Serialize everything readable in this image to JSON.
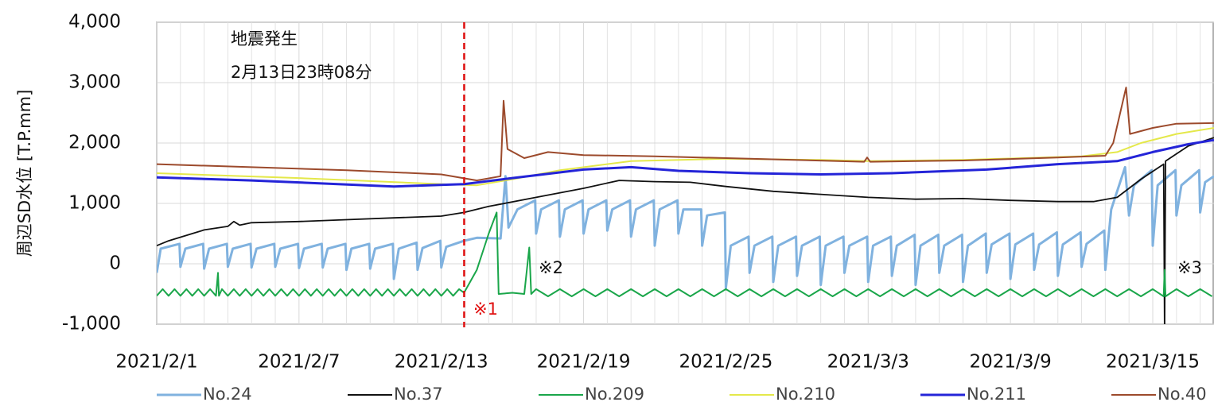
{
  "chart_data": {
    "type": "line",
    "ylabel": "周辺SD水位 [T.P.mm]",
    "ylim": [
      -1000,
      4000
    ],
    "yticks": [
      {
        "value": -1000,
        "label": "-1,000"
      },
      0,
      {
        "value": 1000,
        "label": "1,000"
      },
      {
        "value": 2000,
        "label": "2,000"
      },
      {
        "value": 3000,
        "label": "3,000"
      },
      {
        "value": 4000,
        "label": "4,000"
      }
    ],
    "xlim": [
      "2021-02-01T00:00",
      "2021-03-17T14:00"
    ],
    "xticks": [
      {
        "value": "2021-02-01",
        "label": "2021/2/1"
      },
      {
        "value": "2021-02-07",
        "label": "2021/2/7"
      },
      {
        "value": "2021-02-13",
        "label": "2021/2/13"
      },
      {
        "value": "2021-02-19",
        "label": "2021/2/19"
      },
      {
        "value": "2021-02-25",
        "label": "2021/2/25"
      },
      {
        "value": "2021-03-03",
        "label": "2021/3/3"
      },
      {
        "value": "2021-03-09",
        "label": "2021/3/9"
      },
      {
        "value": "2021-03-15",
        "label": "2021/3/15"
      }
    ],
    "xminor_ticks": [
      "2021-02-02",
      "2021-02-03",
      "2021-02-04",
      "2021-02-05",
      "2021-02-06",
      "2021-02-08",
      "2021-02-09",
      "2021-02-10",
      "2021-02-11",
      "2021-02-12",
      "2021-02-14",
      "2021-02-15",
      "2021-02-16",
      "2021-02-17",
      "2021-02-18",
      "2021-02-20",
      "2021-02-21",
      "2021-02-22",
      "2021-02-23",
      "2021-02-24",
      "2021-02-26",
      "2021-02-27",
      "2021-02-28",
      "2021-03-01",
      "2021-03-02",
      "2021-03-04",
      "2021-03-05",
      "2021-03-06",
      "2021-03-07",
      "2021-03-08",
      "2021-03-10",
      "2021-03-11",
      "2021-03-12",
      "2021-03-13",
      "2021-03-14",
      "2021-03-16",
      "2021-03-17"
    ],
    "grid": true,
    "event": {
      "x": "2021-02-13T23:08",
      "color": "#e01010",
      "labels": [
        "地震発生",
        "2月13日23時08分"
      ]
    },
    "notes": [
      "※1",
      "※2",
      "※3"
    ],
    "series": [
      {
        "name": "No.24",
        "color": "#80b2df",
        "width": 3,
        "x": [
          "2021-02-01T00:00",
          "2021-02-01T04:00",
          "2021-02-01T23:00",
          "2021-02-02T00:00",
          "2021-02-02T05:00",
          "2021-02-02T23:00",
          "2021-02-03T00:00",
          "2021-02-03T05:00",
          "2021-02-03T23:00",
          "2021-02-04T00:00",
          "2021-02-04T05:00",
          "2021-02-04T23:00",
          "2021-02-05T00:00",
          "2021-02-05T05:00",
          "2021-02-05T23:00",
          "2021-02-06T00:00",
          "2021-02-06T05:00",
          "2021-02-06T23:00",
          "2021-02-07T00:00",
          "2021-02-07T05:00",
          "2021-02-07T23:00",
          "2021-02-08T00:00",
          "2021-02-08T05:00",
          "2021-02-08T23:00",
          "2021-02-09T00:00",
          "2021-02-09T05:00",
          "2021-02-09T23:00",
          "2021-02-10T00:00",
          "2021-02-10T05:00",
          "2021-02-10T23:00",
          "2021-02-11T00:00",
          "2021-02-11T05:00",
          "2021-02-11T23:00",
          "2021-02-12T00:00",
          "2021-02-12T05:00",
          "2021-02-12T23:00",
          "2021-02-13T00:00",
          "2021-02-13T05:00",
          "2021-02-13T23:00",
          "2021-02-14T12:00",
          "2021-02-15T12:00",
          "2021-02-15T17:00",
          "2021-02-15T20:00",
          "2021-02-16T05:00",
          "2021-02-16T23:00",
          "2021-02-17T00:00",
          "2021-02-17T05:00",
          "2021-02-17T23:00",
          "2021-02-18T00:00",
          "2021-02-18T05:00",
          "2021-02-18T23:00",
          "2021-02-19T00:00",
          "2021-02-19T05:00",
          "2021-02-19T23:00",
          "2021-02-20T00:00",
          "2021-02-20T05:00",
          "2021-02-20T23:00",
          "2021-02-21T00:00",
          "2021-02-21T05:00",
          "2021-02-21T23:00",
          "2021-02-22T00:00",
          "2021-02-22T05:00",
          "2021-02-22T23:00",
          "2021-02-23T00:00",
          "2021-02-23T05:00",
          "2021-02-23T23:00",
          "2021-02-24T00:00",
          "2021-02-24T05:00",
          "2021-02-24T23:00",
          "2021-02-25T00:00",
          "2021-02-25T05:00",
          "2021-02-25T23:00",
          "2021-02-26T00:00",
          "2021-02-26T05:00",
          "2021-02-26T23:00",
          "2021-02-27T00:00",
          "2021-02-27T05:00",
          "2021-02-27T23:00",
          "2021-02-28T00:00",
          "2021-02-28T05:00",
          "2021-02-28T23:00",
          "2021-03-01T00:00",
          "2021-03-01T05:00",
          "2021-03-01T23:00",
          "2021-03-02T00:00",
          "2021-03-02T05:00",
          "2021-03-02T23:00",
          "2021-03-03T00:00",
          "2021-03-03T05:00",
          "2021-03-03T23:00",
          "2021-03-04T00:00",
          "2021-03-04T05:00",
          "2021-03-04T23:00",
          "2021-03-05T00:00",
          "2021-03-05T05:00",
          "2021-03-05T23:00",
          "2021-03-06T00:00",
          "2021-03-06T05:00",
          "2021-03-06T23:00",
          "2021-03-07T00:00",
          "2021-03-07T05:00",
          "2021-03-07T23:00",
          "2021-03-08T00:00",
          "2021-03-08T05:00",
          "2021-03-08T23:00",
          "2021-03-09T00:00",
          "2021-03-09T05:00",
          "2021-03-09T23:00",
          "2021-03-10T00:00",
          "2021-03-10T05:00",
          "2021-03-10T23:00",
          "2021-03-11T00:00",
          "2021-03-11T05:00",
          "2021-03-11T23:00",
          "2021-03-12T00:00",
          "2021-03-12T05:00",
          "2021-03-12T23:00",
          "2021-03-13T00:00",
          "2021-03-13T06:00",
          "2021-03-13T20:00",
          "2021-03-14T00:00",
          "2021-03-14T05:00",
          "2021-03-14T23:00",
          "2021-03-15T00:00",
          "2021-03-15T05:00",
          "2021-03-15T23:00",
          "2021-03-16T00:00",
          "2021-03-16T05:00",
          "2021-03-16T23:00",
          "2021-03-17T00:00",
          "2021-03-17T05:00",
          "2021-03-17T14:00"
        ],
        "values": [
          -150,
          250,
          330,
          -50,
          250,
          330,
          -80,
          250,
          330,
          -50,
          250,
          330,
          -60,
          250,
          330,
          -50,
          250,
          330,
          -70,
          250,
          330,
          -60,
          250,
          330,
          -100,
          250,
          330,
          -80,
          250,
          330,
          -250,
          250,
          350,
          -100,
          260,
          380,
          -60,
          280,
          380,
          430,
          420,
          1450,
          600,
          900,
          1050,
          500,
          900,
          1050,
          450,
          900,
          1050,
          500,
          900,
          1050,
          550,
          900,
          1050,
          450,
          900,
          1050,
          300,
          900,
          1050,
          500,
          900,
          900,
          300,
          800,
          850,
          -400,
          300,
          450,
          -150,
          300,
          450,
          -300,
          300,
          450,
          -200,
          300,
          450,
          -350,
          300,
          450,
          -150,
          300,
          450,
          -300,
          300,
          450,
          -200,
          300,
          480,
          -350,
          300,
          480,
          -150,
          300,
          480,
          -300,
          300,
          500,
          -150,
          320,
          500,
          -250,
          320,
          500,
          -100,
          320,
          520,
          -200,
          320,
          520,
          -50,
          330,
          550,
          -100,
          900,
          1600,
          800,
          1300,
          1550,
          300,
          1300,
          1550,
          800,
          1300,
          1550,
          850,
          1350,
          1450
        ]
      },
      {
        "name": "No.37",
        "color": "#111111",
        "width": 1.8,
        "x": [
          "2021-02-01T00:00",
          "2021-02-01T12:00",
          "2021-02-02T12:00",
          "2021-02-03T00:00",
          "2021-02-04T00:00",
          "2021-02-04T06:00",
          "2021-02-04T12:00",
          "2021-02-05T00:00",
          "2021-02-07T00:00",
          "2021-02-09T00:00",
          "2021-02-11T00:00",
          "2021-02-13T00:00",
          "2021-02-13T23:00",
          "2021-02-15T00:00",
          "2021-02-17T00:00",
          "2021-02-19T00:00",
          "2021-02-20T12:00",
          "2021-02-22T00:00",
          "2021-02-23T12:00",
          "2021-02-25T00:00",
          "2021-02-27T00:00",
          "2021-03-01T00:00",
          "2021-03-03T00:00",
          "2021-03-05T00:00",
          "2021-03-07T00:00",
          "2021-03-09T00:00",
          "2021-03-11T00:00",
          "2021-03-12T12:00",
          "2021-03-13T12:00",
          "2021-03-14T12:00",
          "2021-03-15T11:00",
          "2021-03-15T12:00",
          "2021-03-15T13:00",
          "2021-03-16T12:00",
          "2021-03-17T14:00"
        ],
        "values": [
          300,
          380,
          500,
          560,
          620,
          700,
          640,
          680,
          700,
          730,
          760,
          790,
          850,
          950,
          1100,
          1250,
          1380,
          1360,
          1350,
          1280,
          1200,
          1150,
          1100,
          1070,
          1080,
          1050,
          1030,
          1030,
          1100,
          1400,
          1650,
          -1100,
          1700,
          1950,
          2090
        ]
      },
      {
        "name": "No.209",
        "color": "#1aa64a",
        "width": 2,
        "x": [
          "2021-02-01T00:00",
          "2021-02-01T06:00",
          "2021-02-01T12:00",
          "2021-02-01T18:00",
          "2021-02-02T00:00",
          "2021-02-02T06:00",
          "2021-02-02T12:00",
          "2021-02-02T18:00",
          "2021-02-03T00:00",
          "2021-02-03T06:00",
          "2021-02-03T12:00",
          "2021-02-03T14:00",
          "2021-02-03T15:00",
          "2021-02-03T18:00",
          "2021-02-04T00:00",
          "2021-02-04T06:00",
          "2021-02-04T12:00",
          "2021-02-04T18:00",
          "2021-02-05T00:00",
          "2021-02-05T06:00",
          "2021-02-05T12:00",
          "2021-02-05T18:00",
          "2021-02-06T00:00",
          "2021-02-06T06:00",
          "2021-02-06T12:00",
          "2021-02-06T18:00",
          "2021-02-07T00:00",
          "2021-02-07T06:00",
          "2021-02-07T12:00",
          "2021-02-07T18:00",
          "2021-02-08T00:00",
          "2021-02-08T06:00",
          "2021-02-08T12:00",
          "2021-02-08T18:00",
          "2021-02-09T00:00",
          "2021-02-09T06:00",
          "2021-02-09T12:00",
          "2021-02-09T18:00",
          "2021-02-10T00:00",
          "2021-02-10T06:00",
          "2021-02-10T12:00",
          "2021-02-10T18:00",
          "2021-02-11T00:00",
          "2021-02-11T06:00",
          "2021-02-11T12:00",
          "2021-02-11T18:00",
          "2021-02-12T00:00",
          "2021-02-12T06:00",
          "2021-02-12T12:00",
          "2021-02-12T18:00",
          "2021-02-13T00:00",
          "2021-02-13T06:00",
          "2021-02-13T12:00",
          "2021-02-13T18:00",
          "2021-02-13T23:00",
          "2021-02-14T12:00",
          "2021-02-15T00:00",
          "2021-02-15T08:00",
          "2021-02-15T10:00",
          "2021-02-16T00:00",
          "2021-02-16T12:00",
          "2021-02-16T17:00",
          "2021-02-16T19:00",
          "2021-02-17T00:00",
          "2021-02-17T12:00",
          "2021-02-18T00:00",
          "2021-02-18T12:00",
          "2021-02-19T00:00",
          "2021-02-19T12:00",
          "2021-02-20T00:00",
          "2021-02-20T12:00",
          "2021-02-21T00:00",
          "2021-02-21T12:00",
          "2021-02-22T00:00",
          "2021-02-22T12:00",
          "2021-02-23T00:00",
          "2021-02-23T12:00",
          "2021-02-24T00:00",
          "2021-02-24T12:00",
          "2021-02-25T00:00",
          "2021-02-25T12:00",
          "2021-02-26T00:00",
          "2021-02-26T12:00",
          "2021-02-27T00:00",
          "2021-02-27T12:00",
          "2021-02-28T00:00",
          "2021-02-28T12:00",
          "2021-03-01T00:00",
          "2021-03-01T12:00",
          "2021-03-02T00:00",
          "2021-03-02T12:00",
          "2021-03-03T00:00",
          "2021-03-03T12:00",
          "2021-03-04T00:00",
          "2021-03-04T12:00",
          "2021-03-05T00:00",
          "2021-03-05T12:00",
          "2021-03-06T00:00",
          "2021-03-06T12:00",
          "2021-03-07T00:00",
          "2021-03-07T12:00",
          "2021-03-08T00:00",
          "2021-03-08T12:00",
          "2021-03-09T00:00",
          "2021-03-09T12:00",
          "2021-03-10T00:00",
          "2021-03-10T12:00",
          "2021-03-11T00:00",
          "2021-03-11T12:00",
          "2021-03-12T00:00",
          "2021-03-12T12:00",
          "2021-03-13T00:00",
          "2021-03-13T12:00",
          "2021-03-14T00:00",
          "2021-03-14T12:00",
          "2021-03-15T00:00",
          "2021-03-15T11:00",
          "2021-03-15T12:00",
          "2021-03-15T13:00",
          "2021-03-16T00:00",
          "2021-03-16T12:00",
          "2021-03-17T00:00",
          "2021-03-17T12:00"
        ],
        "values": [
          -530,
          -420,
          -530,
          -420,
          -530,
          -420,
          -530,
          -420,
          -530,
          -420,
          -530,
          -150,
          -530,
          -420,
          -530,
          -420,
          -530,
          -420,
          -530,
          -420,
          -530,
          -420,
          -530,
          -420,
          -530,
          -420,
          -530,
          -420,
          -530,
          -420,
          -530,
          -420,
          -530,
          -420,
          -530,
          -420,
          -530,
          -420,
          -530,
          -420,
          -530,
          -420,
          -530,
          -420,
          -530,
          -420,
          -530,
          -420,
          -530,
          -420,
          -530,
          -420,
          -530,
          -420,
          -480,
          -100,
          500,
          850,
          -500,
          -480,
          -500,
          270,
          -500,
          -420,
          -540,
          -420,
          -540,
          -420,
          -540,
          -420,
          -540,
          -420,
          -540,
          -420,
          -540,
          -420,
          -540,
          -420,
          -540,
          -420,
          -540,
          -420,
          -540,
          -420,
          -540,
          -420,
          -540,
          -420,
          -540,
          -420,
          -540,
          -420,
          -540,
          -420,
          -540,
          -420,
          -540,
          -420,
          -540,
          -420,
          -540,
          -420,
          -540,
          -420,
          -540,
          -420,
          -540,
          -420,
          -540,
          -420,
          -540,
          -420,
          -540,
          -420,
          -540,
          -420,
          -540,
          -100,
          -540,
          -420,
          -540,
          -420,
          -540
        ]
      },
      {
        "name": "No.210",
        "color": "#e4e84a",
        "width": 2,
        "x": [
          "2021-02-01T00:00",
          "2021-02-07T00:00",
          "2021-02-13T00:00",
          "2021-02-14T12:00",
          "2021-02-16T00:00",
          "2021-02-18T00:00",
          "2021-02-21T00:00",
          "2021-02-25T00:00",
          "2021-03-01T00:00",
          "2021-03-03T00:00",
          "2021-03-07T00:00",
          "2021-03-12T00:00",
          "2021-03-13T12:00",
          "2021-03-14T12:00",
          "2021-03-16T00:00",
          "2021-03-17T14:00"
        ],
        "values": [
          1500,
          1420,
          1320,
          1300,
          1400,
          1550,
          1700,
          1740,
          1720,
          1700,
          1720,
          1780,
          1850,
          2000,
          2150,
          2250
        ]
      },
      {
        "name": "No.211",
        "color": "#2424d8",
        "width": 3,
        "x": [
          "2021-02-01T00:00",
          "2021-02-05T00:00",
          "2021-02-11T00:00",
          "2021-02-13T23:00",
          "2021-02-16T00:00",
          "2021-02-19T00:00",
          "2021-02-21T00:00",
          "2021-02-23T00:00",
          "2021-02-26T00:00",
          "2021-03-01T00:00",
          "2021-03-04T00:00",
          "2021-03-08T00:00",
          "2021-03-11T00:00",
          "2021-03-13T12:00",
          "2021-03-15T00:00",
          "2021-03-16T12:00",
          "2021-03-17T14:00"
        ],
        "values": [
          1430,
          1380,
          1280,
          1320,
          1420,
          1560,
          1600,
          1540,
          1500,
          1480,
          1500,
          1560,
          1650,
          1700,
          1850,
          1980,
          2050
        ]
      },
      {
        "name": "No.40",
        "color": "#9c4a2c",
        "width": 2,
        "x": [
          "2021-02-01T00:00",
          "2021-02-05T00:00",
          "2021-02-09T00:00",
          "2021-02-13T00:00",
          "2021-02-14T12:00",
          "2021-02-15T12:00",
          "2021-02-15T15:00",
          "2021-02-15T19:00",
          "2021-02-16T12:00",
          "2021-02-17T12:00",
          "2021-02-19T00:00",
          "2021-02-22T00:00",
          "2021-02-26T00:00",
          "2021-03-02T20:00",
          "2021-03-02T23:00",
          "2021-03-03T02:00",
          "2021-03-07T00:00",
          "2021-03-11T00:00",
          "2021-03-13T00:00",
          "2021-03-13T08:00",
          "2021-03-13T21:00",
          "2021-03-14T01:00",
          "2021-03-15T00:00",
          "2021-03-16T00:00",
          "2021-03-17T14:00"
        ],
        "values": [
          1650,
          1600,
          1550,
          1480,
          1380,
          1450,
          2700,
          1900,
          1750,
          1850,
          1800,
          1780,
          1740,
          1690,
          1760,
          1690,
          1710,
          1760,
          1790,
          2000,
          2920,
          2150,
          2250,
          2320,
          2330
        ]
      }
    ]
  }
}
